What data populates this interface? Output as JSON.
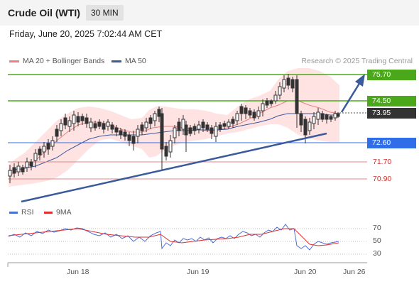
{
  "header": {
    "instrument": "Crude Oil (WTI)",
    "timeframe": "30 MIN"
  },
  "date": "Friday, June 20, 2025 7:02:44 AM CET",
  "legend": {
    "bb_label": "MA 20 + Bollinger Bands",
    "ma50_label": "MA 50",
    "bb_color": "#f08080",
    "ma50_color": "#3a5a9b"
  },
  "credit": "Research © 2025 Trading Central",
  "levels": {
    "l1": "75.70",
    "l2": "74.50",
    "current": "73.95",
    "l3": "72.60",
    "l4": "71.70",
    "l5": "70.90",
    "resistance_color": "#4aa81a",
    "pivot_color": "#2f6ee8",
    "support_color": "#e08a8a"
  },
  "rsi": {
    "rsi_label": "RSI",
    "ma_label": "9MA",
    "ticks": [
      "70",
      "50",
      "30"
    ],
    "rsi_color": "#4a6fd4",
    "ma_color": "#e03030"
  },
  "xaxis": [
    "Jun 18",
    "Jun 19",
    "Jun 20",
    "Jun 26"
  ],
  "chart_data": {
    "type": "candlestick",
    "y_levels": [
      75.7,
      74.5,
      73.95,
      72.6,
      71.7,
      70.9
    ],
    "rsi_levels": [
      70,
      50,
      30
    ],
    "x_labels": [
      "Jun 18",
      "Jun 19",
      "Jun 20",
      "Jun 26"
    ],
    "series": [
      {
        "name": "MA 20 + Bollinger Bands"
      },
      {
        "name": "MA 50"
      },
      {
        "name": "RSI"
      },
      {
        "name": "9MA"
      }
    ]
  }
}
